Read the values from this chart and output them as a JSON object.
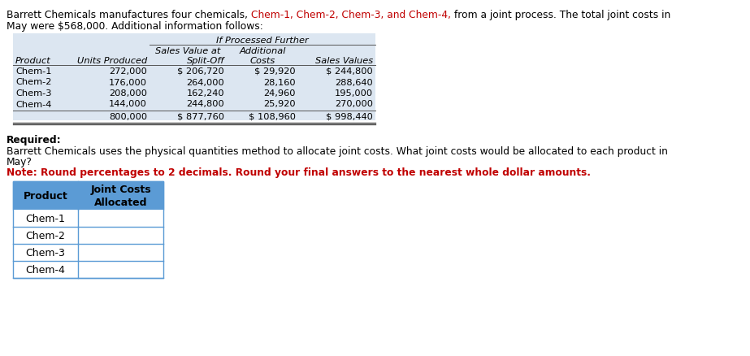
{
  "title_seg1": "Barrett Chemicals manufactures four chemicals, ",
  "title_seg2": "Chem-1, Chem-2, Chem-3, and Chem-4,",
  "title_seg3": " from a joint process. The total joint costs in",
  "title_line2": "May were $568,000. Additional information follows:",
  "title_color": "#000000",
  "highlight_color": "#C00000",
  "table1_bg_color": "#dce6f1",
  "table1_header_row3": [
    "Product",
    "Units Produced",
    "Split-Off",
    "Costs",
    "Sales Values"
  ],
  "table1_data": [
    [
      "Chem-1",
      "272,000",
      "$ 206,720",
      "$ 29,920",
      "$ 244,800"
    ],
    [
      "Chem-2",
      "176,000",
      "264,000",
      "28,160",
      "288,640"
    ],
    [
      "Chem-3",
      "208,000",
      "162,240",
      "24,960",
      "195,000"
    ],
    [
      "Chem-4",
      "144,000",
      "244,800",
      "25,920",
      "270,000"
    ]
  ],
  "table1_total": [
    "",
    "800,000",
    "$ 877,760",
    "$ 108,960",
    "$ 998,440"
  ],
  "required_text": "Required:",
  "body_line1": "Barrett Chemicals uses the physical quantities method to allocate joint costs. What joint costs would be allocated to each product in",
  "body_line2": "May?",
  "note_text": "Note: Round percentages to 2 decimals. Round your final answers to the nearest whole dollar amounts.",
  "note_color": "#C00000",
  "table2_headers": [
    "Product",
    "Joint Costs\nAllocated"
  ],
  "table2_data": [
    [
      "Chem-1",
      ""
    ],
    [
      "Chem-2",
      ""
    ],
    [
      "Chem-3",
      ""
    ],
    [
      "Chem-4",
      ""
    ]
  ],
  "table2_header_bg": "#5b9bd5",
  "table2_header_text_color": "#000000",
  "table2_row_bg": "#ffffff",
  "table2_border_color": "#5b9bd5"
}
